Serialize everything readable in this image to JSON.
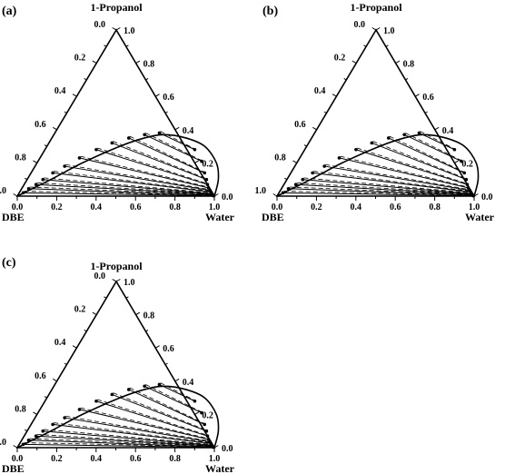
{
  "figure": {
    "panels": [
      {
        "letter": "(a)",
        "top_label": "1-Propanol",
        "left_label": "DBE",
        "right_label": "Water"
      },
      {
        "letter": "(b)",
        "top_label": "1-Propanol",
        "left_label": "DBE",
        "right_label": "Water"
      },
      {
        "letter": "(c)",
        "top_label": "1-Propanol",
        "left_label": "DBE",
        "right_label": "Water"
      }
    ],
    "ticks": {
      "bottom": [
        "0.0",
        "0.2",
        "0.4",
        "0.6",
        "0.8",
        "1.0"
      ],
      "left": [
        "0.0",
        "0.2",
        "0.4",
        "0.6",
        "0.8",
        "1.0"
      ],
      "right": [
        "1.0",
        "0.8",
        "0.6",
        "0.4",
        "0.2",
        "0.0"
      ]
    }
  },
  "chart_data": [
    {
      "type": "scatter",
      "title": "(a)",
      "components": {
        "top": "1-Propanol",
        "left": "DBE",
        "right": "Water"
      },
      "note": "ternary liquid-liquid equilibrium: binodal curve, tie-lines (solid experimental, dashed calculated)",
      "binodal_curve": [
        {
          "water": 0.0,
          "propanol": 0.0
        },
        {
          "water": 0.12,
          "propanol": 0.1
        },
        {
          "water": 0.23,
          "propanol": 0.2
        },
        {
          "water": 0.37,
          "propanol": 0.3
        },
        {
          "water": 0.47,
          "propanol": 0.35
        },
        {
          "water": 0.56,
          "propanol": 0.37
        },
        {
          "water": 0.68,
          "propanol": 0.35
        },
        {
          "water": 0.8,
          "propanol": 0.3
        },
        {
          "water": 0.91,
          "propanol": 0.2
        },
        {
          "water": 0.97,
          "propanol": 0.1
        },
        {
          "water": 1.0,
          "propanol": 0.0
        }
      ],
      "tie_lines": [
        {
          "organic": {
            "water": 0.02,
            "propanol": 0.02
          },
          "aqueous": {
            "water": 0.995,
            "propanol": 0.002
          }
        },
        {
          "organic": {
            "water": 0.035,
            "propanol": 0.045
          },
          "aqueous": {
            "water": 0.99,
            "propanol": 0.005
          }
        },
        {
          "organic": {
            "water": 0.06,
            "propanol": 0.07
          },
          "aqueous": {
            "water": 0.985,
            "propanol": 0.01
          }
        },
        {
          "organic": {
            "water": 0.08,
            "propanol": 0.1
          },
          "aqueous": {
            "water": 0.98,
            "propanol": 0.015
          }
        },
        {
          "organic": {
            "water": 0.11,
            "propanol": 0.14
          },
          "aqueous": {
            "water": 0.97,
            "propanol": 0.025
          }
        },
        {
          "organic": {
            "water": 0.15,
            "propanol": 0.18
          },
          "aqueous": {
            "water": 0.96,
            "propanol": 0.035
          }
        },
        {
          "organic": {
            "water": 0.2,
            "propanol": 0.23
          },
          "aqueous": {
            "water": 0.945,
            "propanol": 0.05
          }
        },
        {
          "organic": {
            "water": 0.26,
            "propanol": 0.28
          },
          "aqueous": {
            "water": 0.93,
            "propanol": 0.07
          }
        },
        {
          "organic": {
            "water": 0.32,
            "propanol": 0.32
          },
          "aqueous": {
            "water": 0.91,
            "propanol": 0.1
          }
        },
        {
          "organic": {
            "water": 0.39,
            "propanol": 0.35
          },
          "aqueous": {
            "water": 0.88,
            "propanol": 0.14
          }
        },
        {
          "organic": {
            "water": 0.46,
            "propanol": 0.37
          },
          "aqueous": {
            "water": 0.83,
            "propanol": 0.21
          }
        },
        {
          "organic": {
            "water": 0.53,
            "propanol": 0.38
          },
          "aqueous": {
            "water": 0.76,
            "propanol": 0.28
          }
        }
      ]
    },
    {
      "type": "scatter",
      "title": "(b)",
      "components": {
        "top": "1-Propanol",
        "left": "DBE",
        "right": "Water"
      },
      "note": "ternary liquid-liquid equilibrium: binodal curve, tie-lines (solid experimental, dashed calculated)",
      "binodal_curve": [
        {
          "water": 0.0,
          "propanol": 0.0
        },
        {
          "water": 0.12,
          "propanol": 0.1
        },
        {
          "water": 0.23,
          "propanol": 0.2
        },
        {
          "water": 0.37,
          "propanol": 0.3
        },
        {
          "water": 0.47,
          "propanol": 0.35
        },
        {
          "water": 0.56,
          "propanol": 0.37
        },
        {
          "water": 0.68,
          "propanol": 0.35
        },
        {
          "water": 0.8,
          "propanol": 0.3
        },
        {
          "water": 0.91,
          "propanol": 0.2
        },
        {
          "water": 0.97,
          "propanol": 0.1
        },
        {
          "water": 1.0,
          "propanol": 0.0
        }
      ],
      "tie_lines": [
        {
          "organic": {
            "water": 0.02,
            "propanol": 0.02
          },
          "aqueous": {
            "water": 0.995,
            "propanol": 0.002
          }
        },
        {
          "organic": {
            "water": 0.035,
            "propanol": 0.045
          },
          "aqueous": {
            "water": 0.99,
            "propanol": 0.005
          }
        },
        {
          "organic": {
            "water": 0.06,
            "propanol": 0.07
          },
          "aqueous": {
            "water": 0.985,
            "propanol": 0.01
          }
        },
        {
          "organic": {
            "water": 0.08,
            "propanol": 0.1
          },
          "aqueous": {
            "water": 0.98,
            "propanol": 0.015
          }
        },
        {
          "organic": {
            "water": 0.11,
            "propanol": 0.14
          },
          "aqueous": {
            "water": 0.97,
            "propanol": 0.025
          }
        },
        {
          "organic": {
            "water": 0.15,
            "propanol": 0.18
          },
          "aqueous": {
            "water": 0.96,
            "propanol": 0.035
          }
        },
        {
          "organic": {
            "water": 0.2,
            "propanol": 0.23
          },
          "aqueous": {
            "water": 0.945,
            "propanol": 0.05
          }
        },
        {
          "organic": {
            "water": 0.26,
            "propanol": 0.28
          },
          "aqueous": {
            "water": 0.93,
            "propanol": 0.07
          }
        },
        {
          "organic": {
            "water": 0.32,
            "propanol": 0.32
          },
          "aqueous": {
            "water": 0.91,
            "propanol": 0.1
          }
        },
        {
          "organic": {
            "water": 0.39,
            "propanol": 0.35
          },
          "aqueous": {
            "water": 0.88,
            "propanol": 0.14
          }
        },
        {
          "organic": {
            "water": 0.46,
            "propanol": 0.37
          },
          "aqueous": {
            "water": 0.83,
            "propanol": 0.21
          }
        },
        {
          "organic": {
            "water": 0.53,
            "propanol": 0.38
          },
          "aqueous": {
            "water": 0.76,
            "propanol": 0.28
          }
        }
      ]
    },
    {
      "type": "scatter",
      "title": "(c)",
      "components": {
        "top": "1-Propanol",
        "left": "DBE",
        "right": "Water"
      },
      "note": "ternary liquid-liquid equilibrium: binodal curve, tie-lines (solid experimental, dashed calculated)",
      "binodal_curve": [
        {
          "water": 0.0,
          "propanol": 0.0
        },
        {
          "water": 0.12,
          "propanol": 0.1
        },
        {
          "water": 0.23,
          "propanol": 0.2
        },
        {
          "water": 0.37,
          "propanol": 0.3
        },
        {
          "water": 0.47,
          "propanol": 0.35
        },
        {
          "water": 0.56,
          "propanol": 0.37
        },
        {
          "water": 0.68,
          "propanol": 0.35
        },
        {
          "water": 0.8,
          "propanol": 0.3
        },
        {
          "water": 0.91,
          "propanol": 0.2
        },
        {
          "water": 0.97,
          "propanol": 0.1
        },
        {
          "water": 1.0,
          "propanol": 0.0
        }
      ],
      "tie_lines": [
        {
          "organic": {
            "water": 0.02,
            "propanol": 0.02
          },
          "aqueous": {
            "water": 0.995,
            "propanol": 0.002
          }
        },
        {
          "organic": {
            "water": 0.035,
            "propanol": 0.045
          },
          "aqueous": {
            "water": 0.99,
            "propanol": 0.005
          }
        },
        {
          "organic": {
            "water": 0.06,
            "propanol": 0.07
          },
          "aqueous": {
            "water": 0.985,
            "propanol": 0.01
          }
        },
        {
          "organic": {
            "water": 0.08,
            "propanol": 0.1
          },
          "aqueous": {
            "water": 0.98,
            "propanol": 0.015
          }
        },
        {
          "organic": {
            "water": 0.11,
            "propanol": 0.14
          },
          "aqueous": {
            "water": 0.97,
            "propanol": 0.025
          }
        },
        {
          "organic": {
            "water": 0.15,
            "propanol": 0.18
          },
          "aqueous": {
            "water": 0.96,
            "propanol": 0.035
          }
        },
        {
          "organic": {
            "water": 0.2,
            "propanol": 0.23
          },
          "aqueous": {
            "water": 0.945,
            "propanol": 0.05
          }
        },
        {
          "organic": {
            "water": 0.26,
            "propanol": 0.28
          },
          "aqueous": {
            "water": 0.93,
            "propanol": 0.07
          }
        },
        {
          "organic": {
            "water": 0.32,
            "propanol": 0.32
          },
          "aqueous": {
            "water": 0.91,
            "propanol": 0.1
          }
        },
        {
          "organic": {
            "water": 0.39,
            "propanol": 0.35
          },
          "aqueous": {
            "water": 0.88,
            "propanol": 0.14
          }
        },
        {
          "organic": {
            "water": 0.46,
            "propanol": 0.37
          },
          "aqueous": {
            "water": 0.83,
            "propanol": 0.21
          }
        },
        {
          "organic": {
            "water": 0.53,
            "propanol": 0.38
          },
          "aqueous": {
            "water": 0.76,
            "propanol": 0.28
          }
        }
      ]
    }
  ]
}
